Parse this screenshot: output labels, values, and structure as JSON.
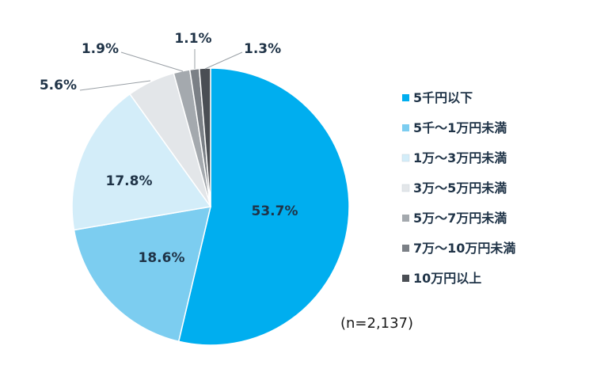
{
  "chart_data": {
    "type": "pie",
    "start_angle_deg": 0,
    "direction": "clockwise",
    "slices": [
      {
        "label": "5千円以下",
        "value": 53.7,
        "display": "53.7%",
        "color": "#00aeef"
      },
      {
        "label": "5千～1万円未満",
        "value": 18.6,
        "display": "18.6%",
        "color": "#7ccdf0"
      },
      {
        "label": "1万～3万円未満",
        "value": 17.8,
        "display": "17.8%",
        "color": "#d3edf9"
      },
      {
        "label": "3万～5万円未満",
        "value": 5.6,
        "display": "5.6%",
        "color": "#e3e6e9"
      },
      {
        "label": "5万～7万円未満",
        "value": 1.9,
        "display": "1.9%",
        "color": "#a4a9ae"
      },
      {
        "label": "7万～10万円未満",
        "value": 1.1,
        "display": "1.1%",
        "color": "#7b8086"
      },
      {
        "label": "10万円以上",
        "value": 1.3,
        "display": "1.3%",
        "color": "#4a4e54"
      }
    ],
    "legend_position": "right",
    "note": "(n=2,137)"
  }
}
